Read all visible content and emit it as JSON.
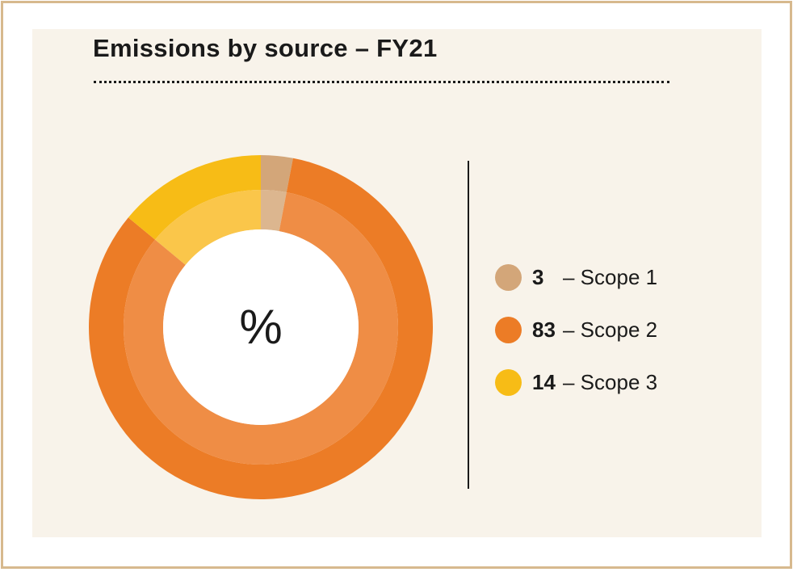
{
  "chart_data": {
    "type": "pie",
    "title": "Emissions by source – FY21",
    "center_label": "%",
    "categories": [
      "Scope 1",
      "Scope 2",
      "Scope 3"
    ],
    "values": [
      3,
      83,
      14
    ],
    "colors": {
      "Scope 1": {
        "outer": "#d3a679",
        "inner": "#dcb68f"
      },
      "Scope 2": {
        "outer": "#ec7c26",
        "inner": "#ef8d45"
      },
      "Scope 3": {
        "outer": "#f7bc16",
        "inner": "#fac64a"
      }
    },
    "legend": [
      {
        "value": "3",
        "label": "– Scope 1",
        "color": "#d3a679"
      },
      {
        "value": "83",
        "label": "– Scope 2",
        "color": "#ec7c26"
      },
      {
        "value": "14",
        "label": "– Scope 3",
        "color": "#f7bc16"
      }
    ],
    "legend_position": "right"
  }
}
